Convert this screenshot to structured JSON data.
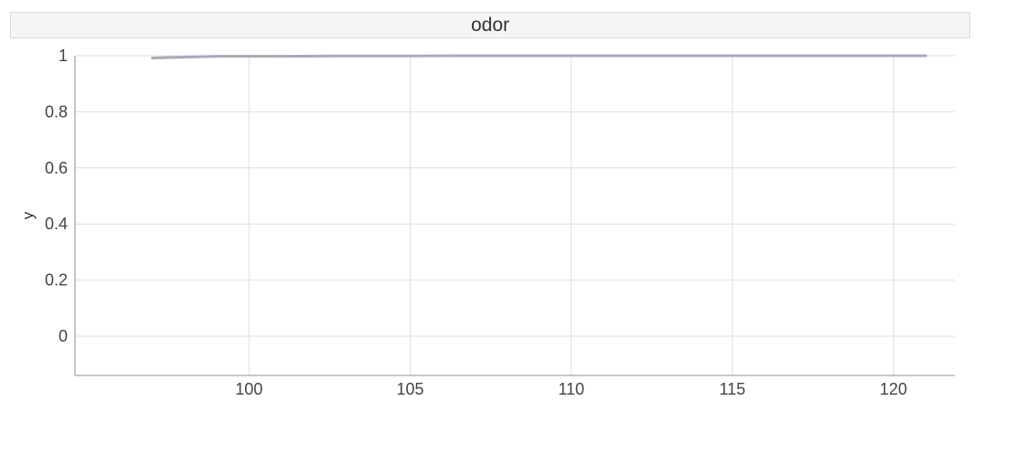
{
  "chart_data": {
    "type": "line",
    "title": "odor",
    "xlabel": "",
    "ylabel": "y",
    "xlim": [
      94.6,
      121.9
    ],
    "ylim": [
      -0.14,
      1.0
    ],
    "x_ticks": [
      100,
      105,
      110,
      115,
      120
    ],
    "y_ticks": [
      0,
      0.2,
      0.4,
      0.6,
      0.8,
      1
    ],
    "x_tick_labels": [
      "100",
      "105",
      "110",
      "115",
      "120"
    ],
    "y_tick_labels": [
      "0",
      "0.2",
      "0.4",
      "0.6",
      "0.8",
      "1"
    ],
    "grid": true,
    "series": [
      {
        "color": "#a3acbf",
        "x": [
          97,
          99,
          101,
          103,
          105,
          107,
          109,
          111,
          113,
          115,
          117,
          119,
          121
        ],
        "y": [
          0.992,
          0.998,
          0.998,
          0.999,
          0.999,
          1.0,
          1.0,
          1.0,
          1.0,
          1.0,
          1.0,
          1.0,
          1.0
        ]
      }
    ]
  }
}
